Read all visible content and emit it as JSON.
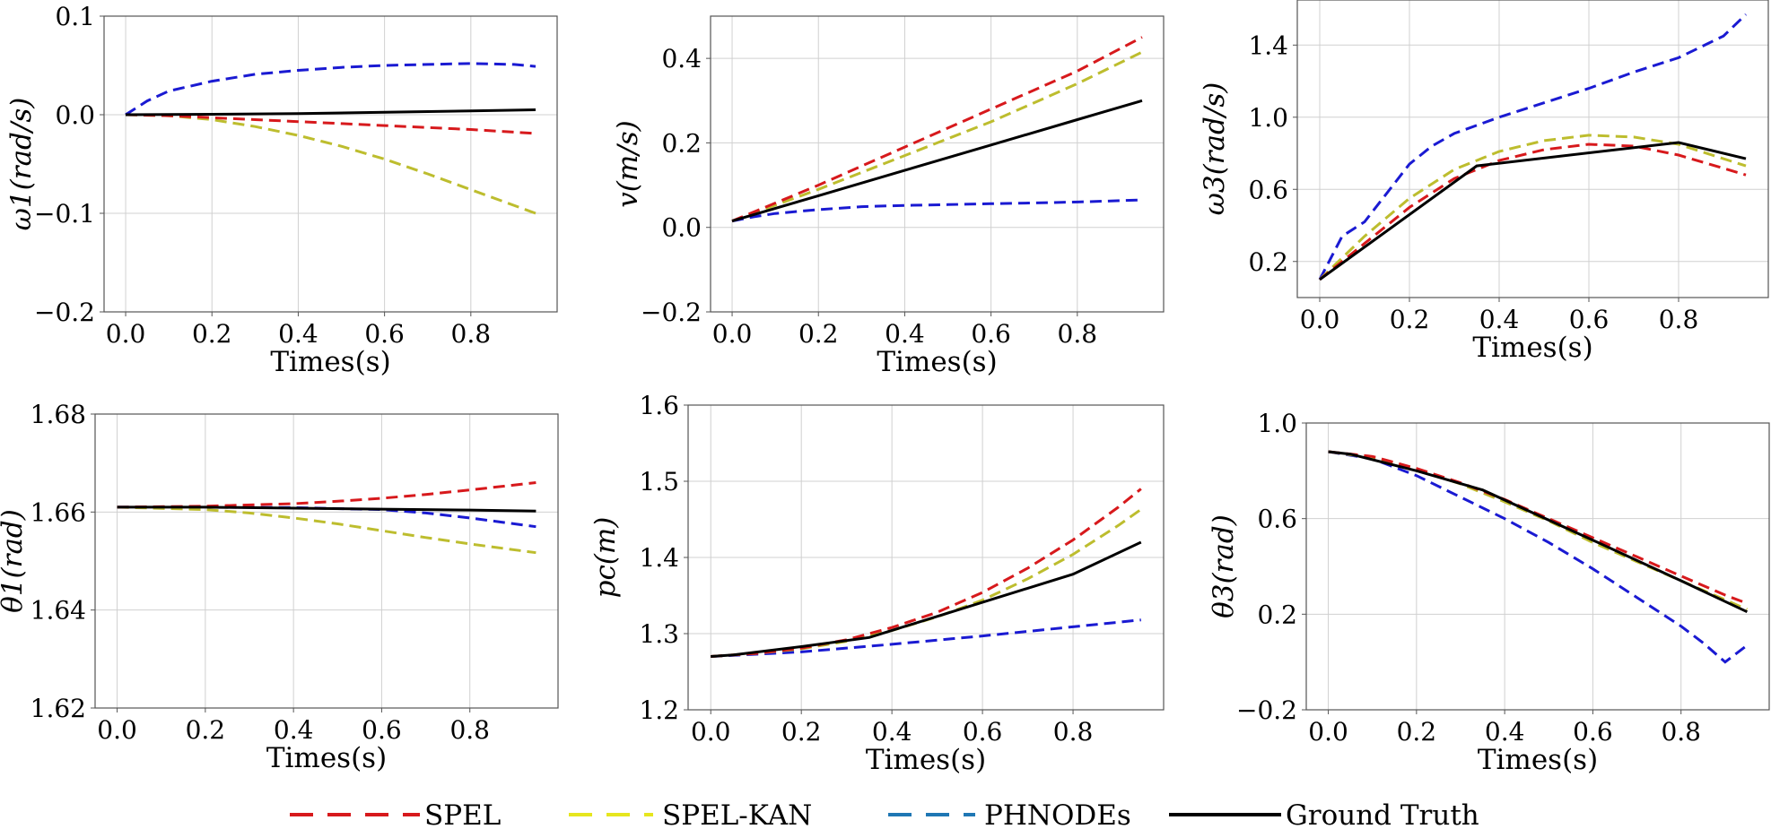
{
  "legend": [
    {
      "name": "SPEL",
      "color": "#d7191c",
      "dash": "dashed"
    },
    {
      "name": "SPEL-KAN",
      "color": "#e6e61e",
      "dash": "dashed"
    },
    {
      "name": "PHNODEs",
      "color": "#1f77b4",
      "dash": "dashed"
    },
    {
      "name": "Ground Truth",
      "color": "#000000",
      "dash": "solid"
    }
  ],
  "colors": {
    "SPEL": "#d7191c",
    "SPEL-KAN": "#bdbd2e",
    "PHNODEs": "#1a1ad2",
    "Ground Truth": "#000000"
  },
  "chart_data": [
    {
      "type": "line",
      "title": "",
      "xlabel": "Times(s)",
      "ylabel": "ω1(rad/s)",
      "xlim": [
        -0.05,
        1.0
      ],
      "ylim": [
        -0.2,
        0.1
      ],
      "xticks": [
        0.0,
        0.2,
        0.4,
        0.6,
        0.8
      ],
      "xtick_labels": [
        "0.0",
        "0.2",
        "0.4",
        "0.6",
        "0.8"
      ],
      "yticks": [
        -0.2,
        -0.1,
        0.0,
        0.1
      ],
      "ytick_labels": [
        "−0.2",
        "−0.1",
        "0.0",
        "0.1"
      ],
      "series": [
        {
          "name": "SPEL",
          "x": [
            0,
            0.1,
            0.2,
            0.3,
            0.4,
            0.5,
            0.6,
            0.7,
            0.8,
            0.95
          ],
          "values": [
            0,
            -0.001,
            -0.003,
            -0.005,
            -0.007,
            -0.009,
            -0.011,
            -0.013,
            -0.015,
            -0.019
          ]
        },
        {
          "name": "SPEL-KAN",
          "x": [
            0,
            0.1,
            0.2,
            0.3,
            0.4,
            0.5,
            0.6,
            0.7,
            0.8,
            0.95
          ],
          "values": [
            0,
            -0.001,
            -0.005,
            -0.012,
            -0.021,
            -0.032,
            -0.045,
            -0.06,
            -0.076,
            -0.1
          ]
        },
        {
          "name": "PHNODEs",
          "x": [
            0,
            0.05,
            0.1,
            0.2,
            0.3,
            0.4,
            0.5,
            0.6,
            0.7,
            0.8,
            0.9,
            0.95
          ],
          "values": [
            0,
            0.014,
            0.024,
            0.034,
            0.041,
            0.045,
            0.048,
            0.05,
            0.051,
            0.052,
            0.051,
            0.049
          ]
        },
        {
          "name": "Ground Truth",
          "x": [
            0,
            0.2,
            0.4,
            0.6,
            0.8,
            0.95
          ],
          "values": [
            0,
            0.0005,
            0.0012,
            0.0025,
            0.0038,
            0.005
          ]
        }
      ]
    },
    {
      "type": "line",
      "title": "",
      "xlabel": "Times(s)",
      "ylabel": "v(m/s)",
      "xlim": [
        -0.05,
        1.0
      ],
      "ylim": [
        -0.2,
        0.5
      ],
      "xticks": [
        0.0,
        0.2,
        0.4,
        0.6,
        0.8
      ],
      "xtick_labels": [
        "0.0",
        "0.2",
        "0.4",
        "0.6",
        "0.8"
      ],
      "yticks": [
        -0.2,
        0.0,
        0.2,
        0.4
      ],
      "ytick_labels": [
        "−0.2",
        "0.0",
        "0.2",
        "0.4"
      ],
      "series": [
        {
          "name": "SPEL",
          "x": [
            0,
            0.2,
            0.4,
            0.6,
            0.8,
            0.95
          ],
          "values": [
            0.015,
            0.1,
            0.19,
            0.28,
            0.37,
            0.45
          ]
        },
        {
          "name": "SPEL-KAN",
          "x": [
            0,
            0.2,
            0.4,
            0.6,
            0.8,
            0.95
          ],
          "values": [
            0.015,
            0.09,
            0.17,
            0.25,
            0.34,
            0.415
          ]
        },
        {
          "name": "PHNODEs",
          "x": [
            0,
            0.05,
            0.1,
            0.2,
            0.3,
            0.4,
            0.5,
            0.6,
            0.7,
            0.8,
            0.95
          ],
          "values": [
            0.015,
            0.025,
            0.033,
            0.042,
            0.049,
            0.052,
            0.054,
            0.056,
            0.058,
            0.06,
            0.065
          ]
        },
        {
          "name": "Ground Truth",
          "x": [
            0,
            0.2,
            0.4,
            0.6,
            0.8,
            0.95
          ],
          "values": [
            0.015,
            0.075,
            0.135,
            0.195,
            0.255,
            0.3
          ]
        }
      ]
    },
    {
      "type": "line",
      "title": "",
      "xlabel": "Times(s)",
      "ylabel": "ω3(rad/s)",
      "xlim": [
        -0.05,
        1.0
      ],
      "ylim": [
        0.0,
        1.65
      ],
      "xticks": [
        0.0,
        0.2,
        0.4,
        0.6,
        0.8
      ],
      "xtick_labels": [
        "0.0",
        "0.2",
        "0.4",
        "0.6",
        "0.8"
      ],
      "yticks": [
        0.2,
        0.6,
        1.0,
        1.4
      ],
      "ytick_labels": [
        "0.2",
        "0.6",
        "1.0",
        "1.4"
      ],
      "series": [
        {
          "name": "SPEL",
          "x": [
            0,
            0.1,
            0.2,
            0.3,
            0.4,
            0.5,
            0.6,
            0.7,
            0.8,
            0.95
          ],
          "values": [
            0.1,
            0.3,
            0.5,
            0.66,
            0.76,
            0.82,
            0.85,
            0.84,
            0.79,
            0.68
          ]
        },
        {
          "name": "SPEL-KAN",
          "x": [
            0,
            0.1,
            0.2,
            0.3,
            0.4,
            0.5,
            0.6,
            0.7,
            0.8,
            0.95
          ],
          "values": [
            0.1,
            0.34,
            0.55,
            0.71,
            0.81,
            0.87,
            0.9,
            0.89,
            0.85,
            0.73
          ]
        },
        {
          "name": "PHNODEs",
          "x": [
            0,
            0.05,
            0.1,
            0.15,
            0.2,
            0.25,
            0.3,
            0.4,
            0.5,
            0.6,
            0.7,
            0.8,
            0.9,
            0.95
          ],
          "values": [
            0.1,
            0.34,
            0.42,
            0.58,
            0.74,
            0.84,
            0.91,
            1.0,
            1.08,
            1.16,
            1.25,
            1.33,
            1.45,
            1.57
          ]
        },
        {
          "name": "Ground Truth",
          "x": [
            0,
            0.35,
            0.8,
            0.95
          ],
          "values": [
            0.1,
            0.73,
            0.86,
            0.77
          ]
        }
      ]
    },
    {
      "type": "line",
      "title": "",
      "xlabel": "Times(s)",
      "ylabel": "θ1(rad)",
      "xlim": [
        -0.05,
        1.0
      ],
      "ylim": [
        1.62,
        1.68
      ],
      "xticks": [
        0.0,
        0.2,
        0.4,
        0.6,
        0.8
      ],
      "xtick_labels": [
        "0.0",
        "0.2",
        "0.4",
        "0.6",
        "0.8"
      ],
      "yticks": [
        1.62,
        1.64,
        1.66,
        1.68
      ],
      "ytick_labels": [
        "1.62",
        "1.64",
        "1.66",
        "1.68"
      ],
      "series": [
        {
          "name": "SPEL",
          "x": [
            0,
            0.2,
            0.4,
            0.5,
            0.6,
            0.7,
            0.8,
            0.95
          ],
          "values": [
            1.661,
            1.6612,
            1.6617,
            1.6622,
            1.6628,
            1.6636,
            1.6645,
            1.666
          ]
        },
        {
          "name": "SPEL-KAN",
          "x": [
            0,
            0.2,
            0.3,
            0.4,
            0.5,
            0.6,
            0.7,
            0.8,
            0.95
          ],
          "values": [
            1.661,
            1.6605,
            1.6598,
            1.6588,
            1.6576,
            1.6562,
            1.6548,
            1.6535,
            1.6517
          ]
        },
        {
          "name": "PHNODEs",
          "x": [
            0,
            0.2,
            0.4,
            0.6,
            0.7,
            0.8,
            0.95
          ],
          "values": [
            1.661,
            1.661,
            1.6609,
            1.6605,
            1.6598,
            1.6588,
            1.657
          ]
        },
        {
          "name": "Ground Truth",
          "x": [
            0,
            0.2,
            0.4,
            0.6,
            0.8,
            0.95
          ],
          "values": [
            1.661,
            1.661,
            1.6608,
            1.6606,
            1.6604,
            1.6602
          ]
        }
      ]
    },
    {
      "type": "line",
      "title": "",
      "xlabel": "Times(s)",
      "ylabel": "pc(m)",
      "xlim": [
        -0.05,
        1.0
      ],
      "ylim": [
        1.2,
        1.6
      ],
      "xticks": [
        0.0,
        0.2,
        0.4,
        0.6,
        0.8
      ],
      "xtick_labels": [
        "0.0",
        "0.2",
        "0.4",
        "0.6",
        "0.8"
      ],
      "yticks": [
        1.2,
        1.3,
        1.4,
        1.5,
        1.6
      ],
      "ytick_labels": [
        "1.2",
        "1.3",
        "1.4",
        "1.5",
        "1.6"
      ],
      "series": [
        {
          "name": "SPEL",
          "x": [
            0,
            0.1,
            0.2,
            0.3,
            0.4,
            0.5,
            0.6,
            0.7,
            0.8,
            0.9,
            0.95
          ],
          "values": [
            1.27,
            1.274,
            1.281,
            1.292,
            1.308,
            1.328,
            1.354,
            1.386,
            1.423,
            1.466,
            1.49
          ]
        },
        {
          "name": "SPEL-KAN",
          "x": [
            0,
            0.1,
            0.2,
            0.3,
            0.4,
            0.5,
            0.6,
            0.7,
            0.8,
            0.9,
            0.95
          ],
          "values": [
            1.27,
            1.274,
            1.28,
            1.29,
            1.304,
            1.322,
            1.344,
            1.372,
            1.404,
            1.442,
            1.463
          ]
        },
        {
          "name": "PHNODEs",
          "x": [
            0,
            0.2,
            0.4,
            0.6,
            0.8,
            0.95
          ],
          "values": [
            1.27,
            1.276,
            1.286,
            1.297,
            1.309,
            1.318
          ]
        },
        {
          "name": "Ground Truth",
          "x": [
            0,
            0.05,
            0.2,
            0.35,
            0.8,
            0.95
          ],
          "values": [
            1.27,
            1.272,
            1.283,
            1.295,
            1.378,
            1.42
          ]
        }
      ]
    },
    {
      "type": "line",
      "title": "",
      "xlabel": "Times(s)",
      "ylabel": "θ3(rad)",
      "xlim": [
        -0.05,
        1.0
      ],
      "ylim": [
        -0.2,
        1.0
      ],
      "xticks": [
        0.0,
        0.2,
        0.4,
        0.6,
        0.8
      ],
      "xtick_labels": [
        "0.0",
        "0.2",
        "0.4",
        "0.6",
        "0.8"
      ],
      "yticks": [
        -0.2,
        0.2,
        0.6,
        1.0
      ],
      "ytick_labels": [
        "−0.2",
        "0.2",
        "0.6",
        "1.0"
      ],
      "series": [
        {
          "name": "SPEL",
          "x": [
            0,
            0.1,
            0.2,
            0.3,
            0.4,
            0.5,
            0.6,
            0.7,
            0.8,
            0.9,
            0.95
          ],
          "values": [
            0.88,
            0.86,
            0.81,
            0.75,
            0.68,
            0.6,
            0.52,
            0.44,
            0.36,
            0.28,
            0.245
          ]
        },
        {
          "name": "SPEL-KAN",
          "x": [
            0,
            0.1,
            0.2,
            0.3,
            0.4,
            0.5,
            0.6,
            0.7,
            0.8,
            0.9,
            0.95
          ],
          "values": [
            0.88,
            0.855,
            0.805,
            0.745,
            0.67,
            0.59,
            0.5,
            0.42,
            0.34,
            0.26,
            0.22
          ]
        },
        {
          "name": "PHNODEs",
          "x": [
            0,
            0.1,
            0.2,
            0.3,
            0.4,
            0.5,
            0.6,
            0.7,
            0.8,
            0.85,
            0.9,
            0.95
          ],
          "values": [
            0.88,
            0.85,
            0.78,
            0.69,
            0.6,
            0.5,
            0.39,
            0.27,
            0.15,
            0.08,
            0.0,
            0.07
          ]
        },
        {
          "name": "Ground Truth",
          "x": [
            0,
            0.05,
            0.2,
            0.35,
            0.6,
            0.8,
            0.95
          ],
          "values": [
            0.88,
            0.87,
            0.8,
            0.72,
            0.51,
            0.34,
            0.21
          ]
        }
      ]
    }
  ]
}
